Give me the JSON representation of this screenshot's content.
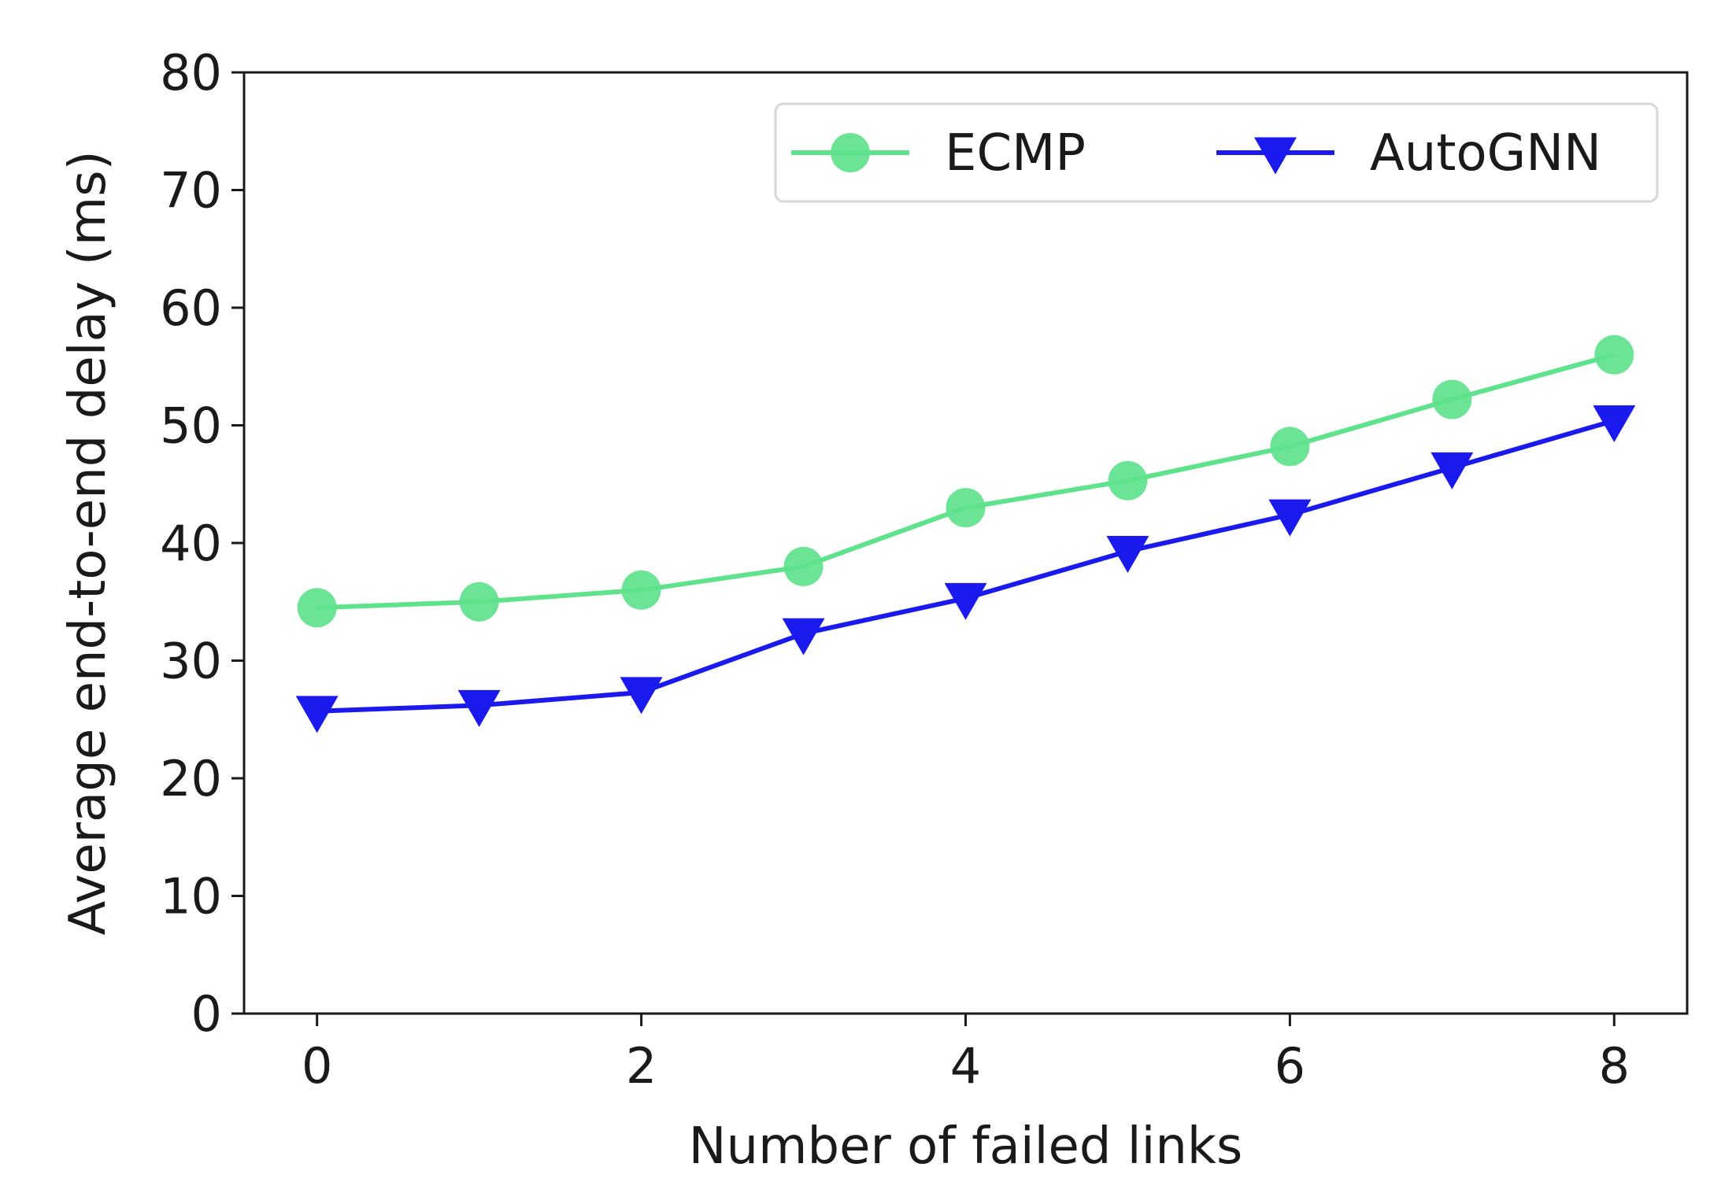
{
  "chart_data": {
    "type": "line",
    "title": "",
    "xlabel": "Number of failed links",
    "ylabel": "Average end-to-end delay (ms)",
    "xlim": [
      -0.45,
      8.45
    ],
    "ylim": [
      0,
      80
    ],
    "xticks": [
      0,
      2,
      4,
      6,
      8
    ],
    "yticks": [
      0,
      10,
      20,
      30,
      40,
      50,
      60,
      70,
      80
    ],
    "grid": false,
    "legend_position": "top-right",
    "x": [
      0,
      1,
      2,
      3,
      4,
      5,
      6,
      7,
      8
    ],
    "series": [
      {
        "name": "ECMP",
        "color": "#5ee38c",
        "marker": "circle",
        "values": [
          34.5,
          35.0,
          36.0,
          38.0,
          43.0,
          45.3,
          48.2,
          52.2,
          56.0
        ]
      },
      {
        "name": "AutoGNN",
        "color": "#1a1aee",
        "marker": "triangle-down",
        "values": [
          25.7,
          26.2,
          27.3,
          32.3,
          35.3,
          39.3,
          42.4,
          46.4,
          50.4
        ]
      }
    ]
  }
}
